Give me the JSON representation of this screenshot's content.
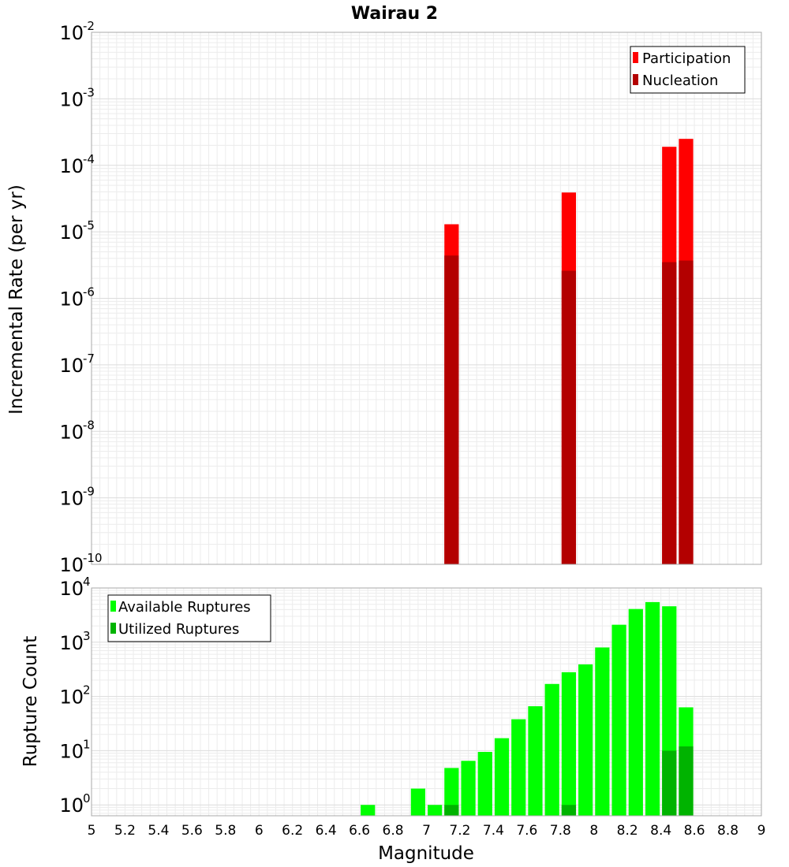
{
  "chart_data": {
    "title": "Wairau 2",
    "type": "bar",
    "x_axis": {
      "label": "Magnitude",
      "range": [
        5,
        9
      ],
      "ticks": [
        "5",
        "5.2",
        "5.4",
        "5.6",
        "5.8",
        "6",
        "6.2",
        "6.4",
        "6.6",
        "6.8",
        "7",
        "7.2",
        "7.4",
        "7.6",
        "7.8",
        "8",
        "8.2",
        "8.4",
        "8.6",
        "8.8",
        "9"
      ]
    },
    "panels": [
      {
        "id": "rate",
        "ylabel": "Incremental Rate (per yr)",
        "yscale": "log",
        "ylim_exponents": [
          -10,
          -2
        ],
        "legend_position": "top-right",
        "series": [
          {
            "name": "Participation",
            "color": "#ff0000",
            "points": [
              {
                "x": 7.15,
                "y": 1.3e-05
              },
              {
                "x": 7.85,
                "y": 3.9e-05
              },
              {
                "x": 8.45,
                "y": 0.00019
              },
              {
                "x": 8.55,
                "y": 0.00025
              }
            ]
          },
          {
            "name": "Nucleation",
            "color": "#b30000",
            "points": [
              {
                "x": 7.15,
                "y": 4.4e-06
              },
              {
                "x": 7.85,
                "y": 2.6e-06
              },
              {
                "x": 8.45,
                "y": 3.5e-06
              },
              {
                "x": 8.55,
                "y": 3.7e-06
              }
            ]
          }
        ]
      },
      {
        "id": "count",
        "ylabel": "Rupture Count",
        "yscale": "log",
        "ylim_exponents": [
          -0.2,
          4
        ],
        "legend_position": "top-left",
        "series": [
          {
            "name": "Available Ruptures",
            "color": "#00ff00",
            "points": [
              {
                "x": 6.65,
                "y": 1
              },
              {
                "x": 6.95,
                "y": 2
              },
              {
                "x": 7.05,
                "y": 1
              },
              {
                "x": 7.15,
                "y": 4.8
              },
              {
                "x": 7.25,
                "y": 6.5
              },
              {
                "x": 7.35,
                "y": 9.5
              },
              {
                "x": 7.45,
                "y": 17
              },
              {
                "x": 7.55,
                "y": 38
              },
              {
                "x": 7.65,
                "y": 66
              },
              {
                "x": 7.75,
                "y": 170
              },
              {
                "x": 7.85,
                "y": 280
              },
              {
                "x": 7.95,
                "y": 390
              },
              {
                "x": 8.05,
                "y": 800
              },
              {
                "x": 8.15,
                "y": 2100
              },
              {
                "x": 8.25,
                "y": 4100
              },
              {
                "x": 8.35,
                "y": 5500
              },
              {
                "x": 8.45,
                "y": 4600
              },
              {
                "x": 8.55,
                "y": 63
              }
            ]
          },
          {
            "name": "Utilized Ruptures",
            "color": "#00b300",
            "points": [
              {
                "x": 7.15,
                "y": 1
              },
              {
                "x": 7.85,
                "y": 1
              },
              {
                "x": 8.45,
                "y": 10
              },
              {
                "x": 8.55,
                "y": 12
              }
            ]
          }
        ]
      }
    ],
    "grid": true
  }
}
